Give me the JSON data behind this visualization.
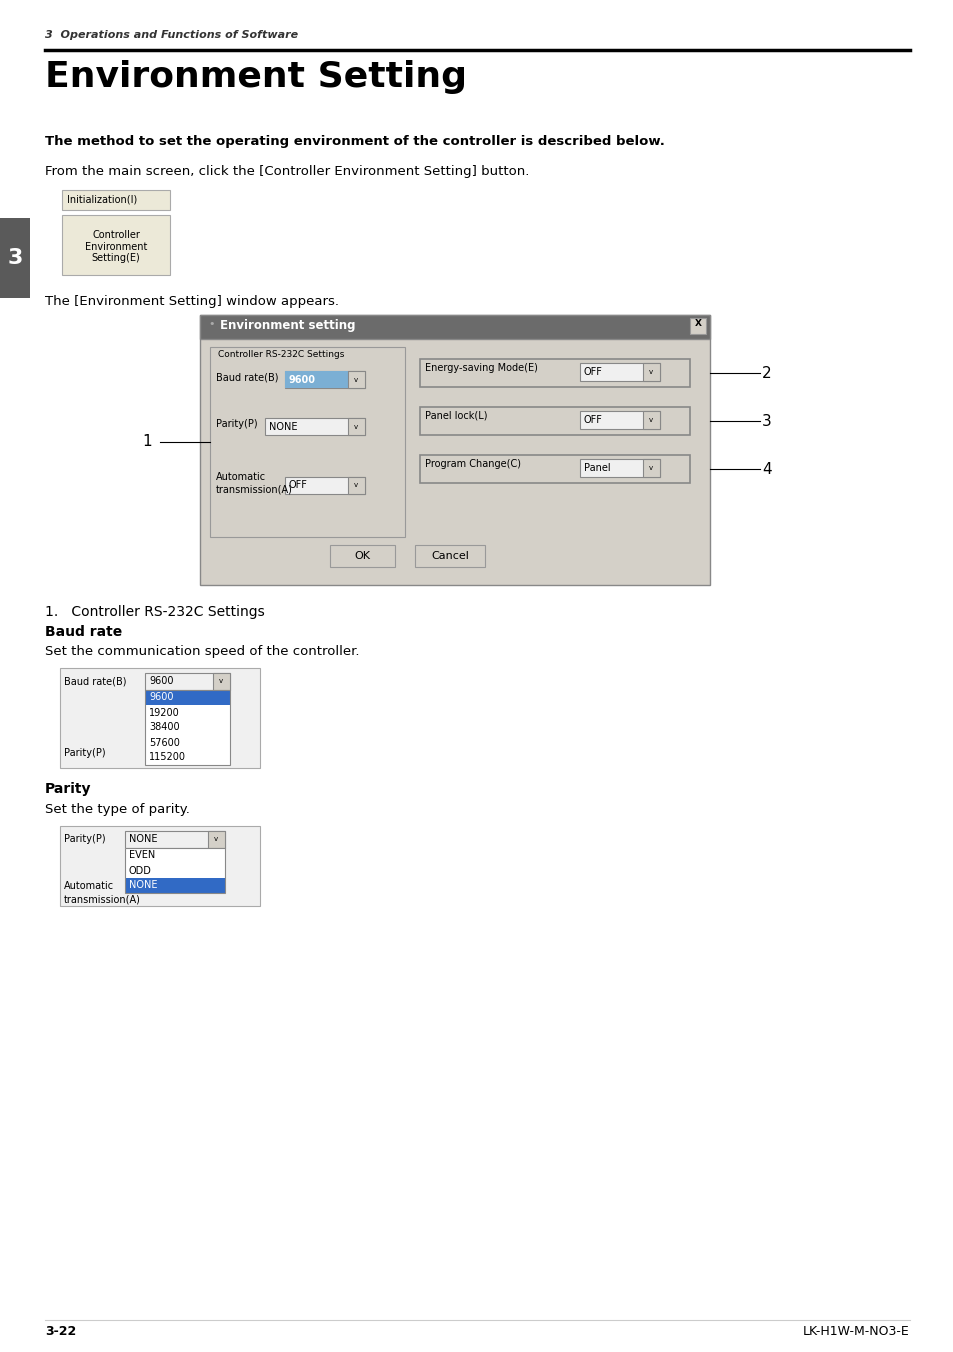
{
  "page_bg": "#ffffff",
  "header_italic": "3  Operations and Functions of Software",
  "title": "Environment Setting",
  "bold_text": "The method to set the operating environment of the controller is described below.",
  "intro_text": "From the main screen, click the [Controller Environment Setting] button.",
  "window_appears_text": "The [Environment Setting] window appears.",
  "section1_title": "1.   Controller RS-232C Settings",
  "baud_rate_title": "Baud rate",
  "baud_rate_desc": "Set the communication speed of the controller.",
  "parity_title": "Parity",
  "parity_desc": "Set the type of parity.",
  "footer_left": "3-22",
  "footer_right": "LK-H1W-M-NO3-E",
  "sidebar_number": "3",
  "sidebar_color": "#5a5a5a",
  "dialog_title_text": "Environment setting",
  "groupbox_label": "Controller RS-232C Settings",
  "label_baud": "Baud rate(B)",
  "label_parity": "Parity(P)",
  "label_auto_line1": "Automatic",
  "label_auto_line2": "transmission(A)",
  "label_energy": "Energy-saving Mode(E)",
  "label_panel": "Panel lock(L)",
  "label_program": "Program Change(C)",
  "val_baud": "9600",
  "val_parity": "NONE",
  "val_auto": "OFF",
  "val_energy": "OFF",
  "val_panel": "OFF",
  "val_program": "Panel",
  "btn_ok": "OK",
  "btn_cancel": "Cancel",
  "baud_dropdown_items": [
    "9600",
    "19200",
    "38400",
    "57600",
    "115200"
  ],
  "parity_dropdown_items": [
    "EVEN",
    "ODD",
    "NONE"
  ]
}
